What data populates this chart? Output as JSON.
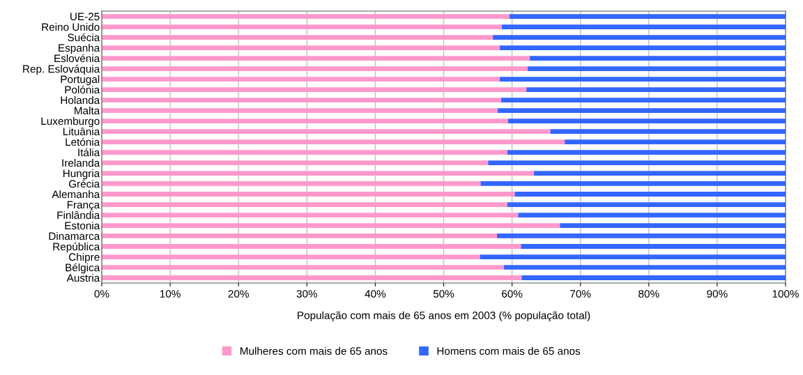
{
  "chart_data": {
    "type": "bar",
    "orientation": "horizontal",
    "stacked": true,
    "xlabel": "População com mais de 65 anos em 2003 (% população total)",
    "categories": [
      "UE-25",
      "Reino Unido",
      "Suécia",
      "Espanha",
      "Eslovénia",
      "Rep. Eslováquia",
      "Portugal",
      "Polónia",
      "Holanda",
      "Malta",
      "Luxemburgo",
      "Lituânia",
      "Letónia",
      "Itália",
      "Irelanda",
      "Hungria",
      "Grécia",
      "Alemanha",
      "França",
      "Finlândia",
      "Estonia",
      "Dinamarca",
      "República",
      "Chipre",
      "Bélgica",
      "Austria"
    ],
    "series": [
      {
        "name": "Mulheres com mais de 65 anos",
        "color": "#ff99cc",
        "values": [
          59.6,
          58.5,
          57.2,
          58.2,
          62.6,
          62.3,
          58.2,
          62.1,
          58.4,
          57.9,
          59.4,
          65.6,
          67.7,
          59.3,
          56.5,
          63.2,
          55.4,
          60.4,
          59.3,
          60.9,
          67.0,
          57.8,
          61.3,
          55.3,
          58.8,
          61.4
        ]
      },
      {
        "name": "Homens com mais de 65 anos",
        "color": "#3366ff",
        "values": [
          40.4,
          41.5,
          42.8,
          41.8,
          37.4,
          37.7,
          41.8,
          37.9,
          41.6,
          42.1,
          40.6,
          34.4,
          32.3,
          40.7,
          43.5,
          36.8,
          44.6,
          39.6,
          40.7,
          39.1,
          33.0,
          42.2,
          38.7,
          44.7,
          41.2,
          38.6
        ]
      }
    ],
    "xlim": [
      0,
      100
    ],
    "xticks": [
      {
        "value": 0,
        "label": "0%"
      },
      {
        "value": 10,
        "label": "10%"
      },
      {
        "value": 20,
        "label": "20%"
      },
      {
        "value": 30,
        "label": "30%"
      },
      {
        "value": 40,
        "label": "40%"
      },
      {
        "value": 50,
        "label": "50%"
      },
      {
        "value": 60,
        "label": "60%"
      },
      {
        "value": 70,
        "label": "70%"
      },
      {
        "value": 80,
        "label": "80%"
      },
      {
        "value": 90,
        "label": "90%"
      },
      {
        "value": 100,
        "label": "100%"
      }
    ],
    "grid": "x",
    "legend": "bottom"
  }
}
